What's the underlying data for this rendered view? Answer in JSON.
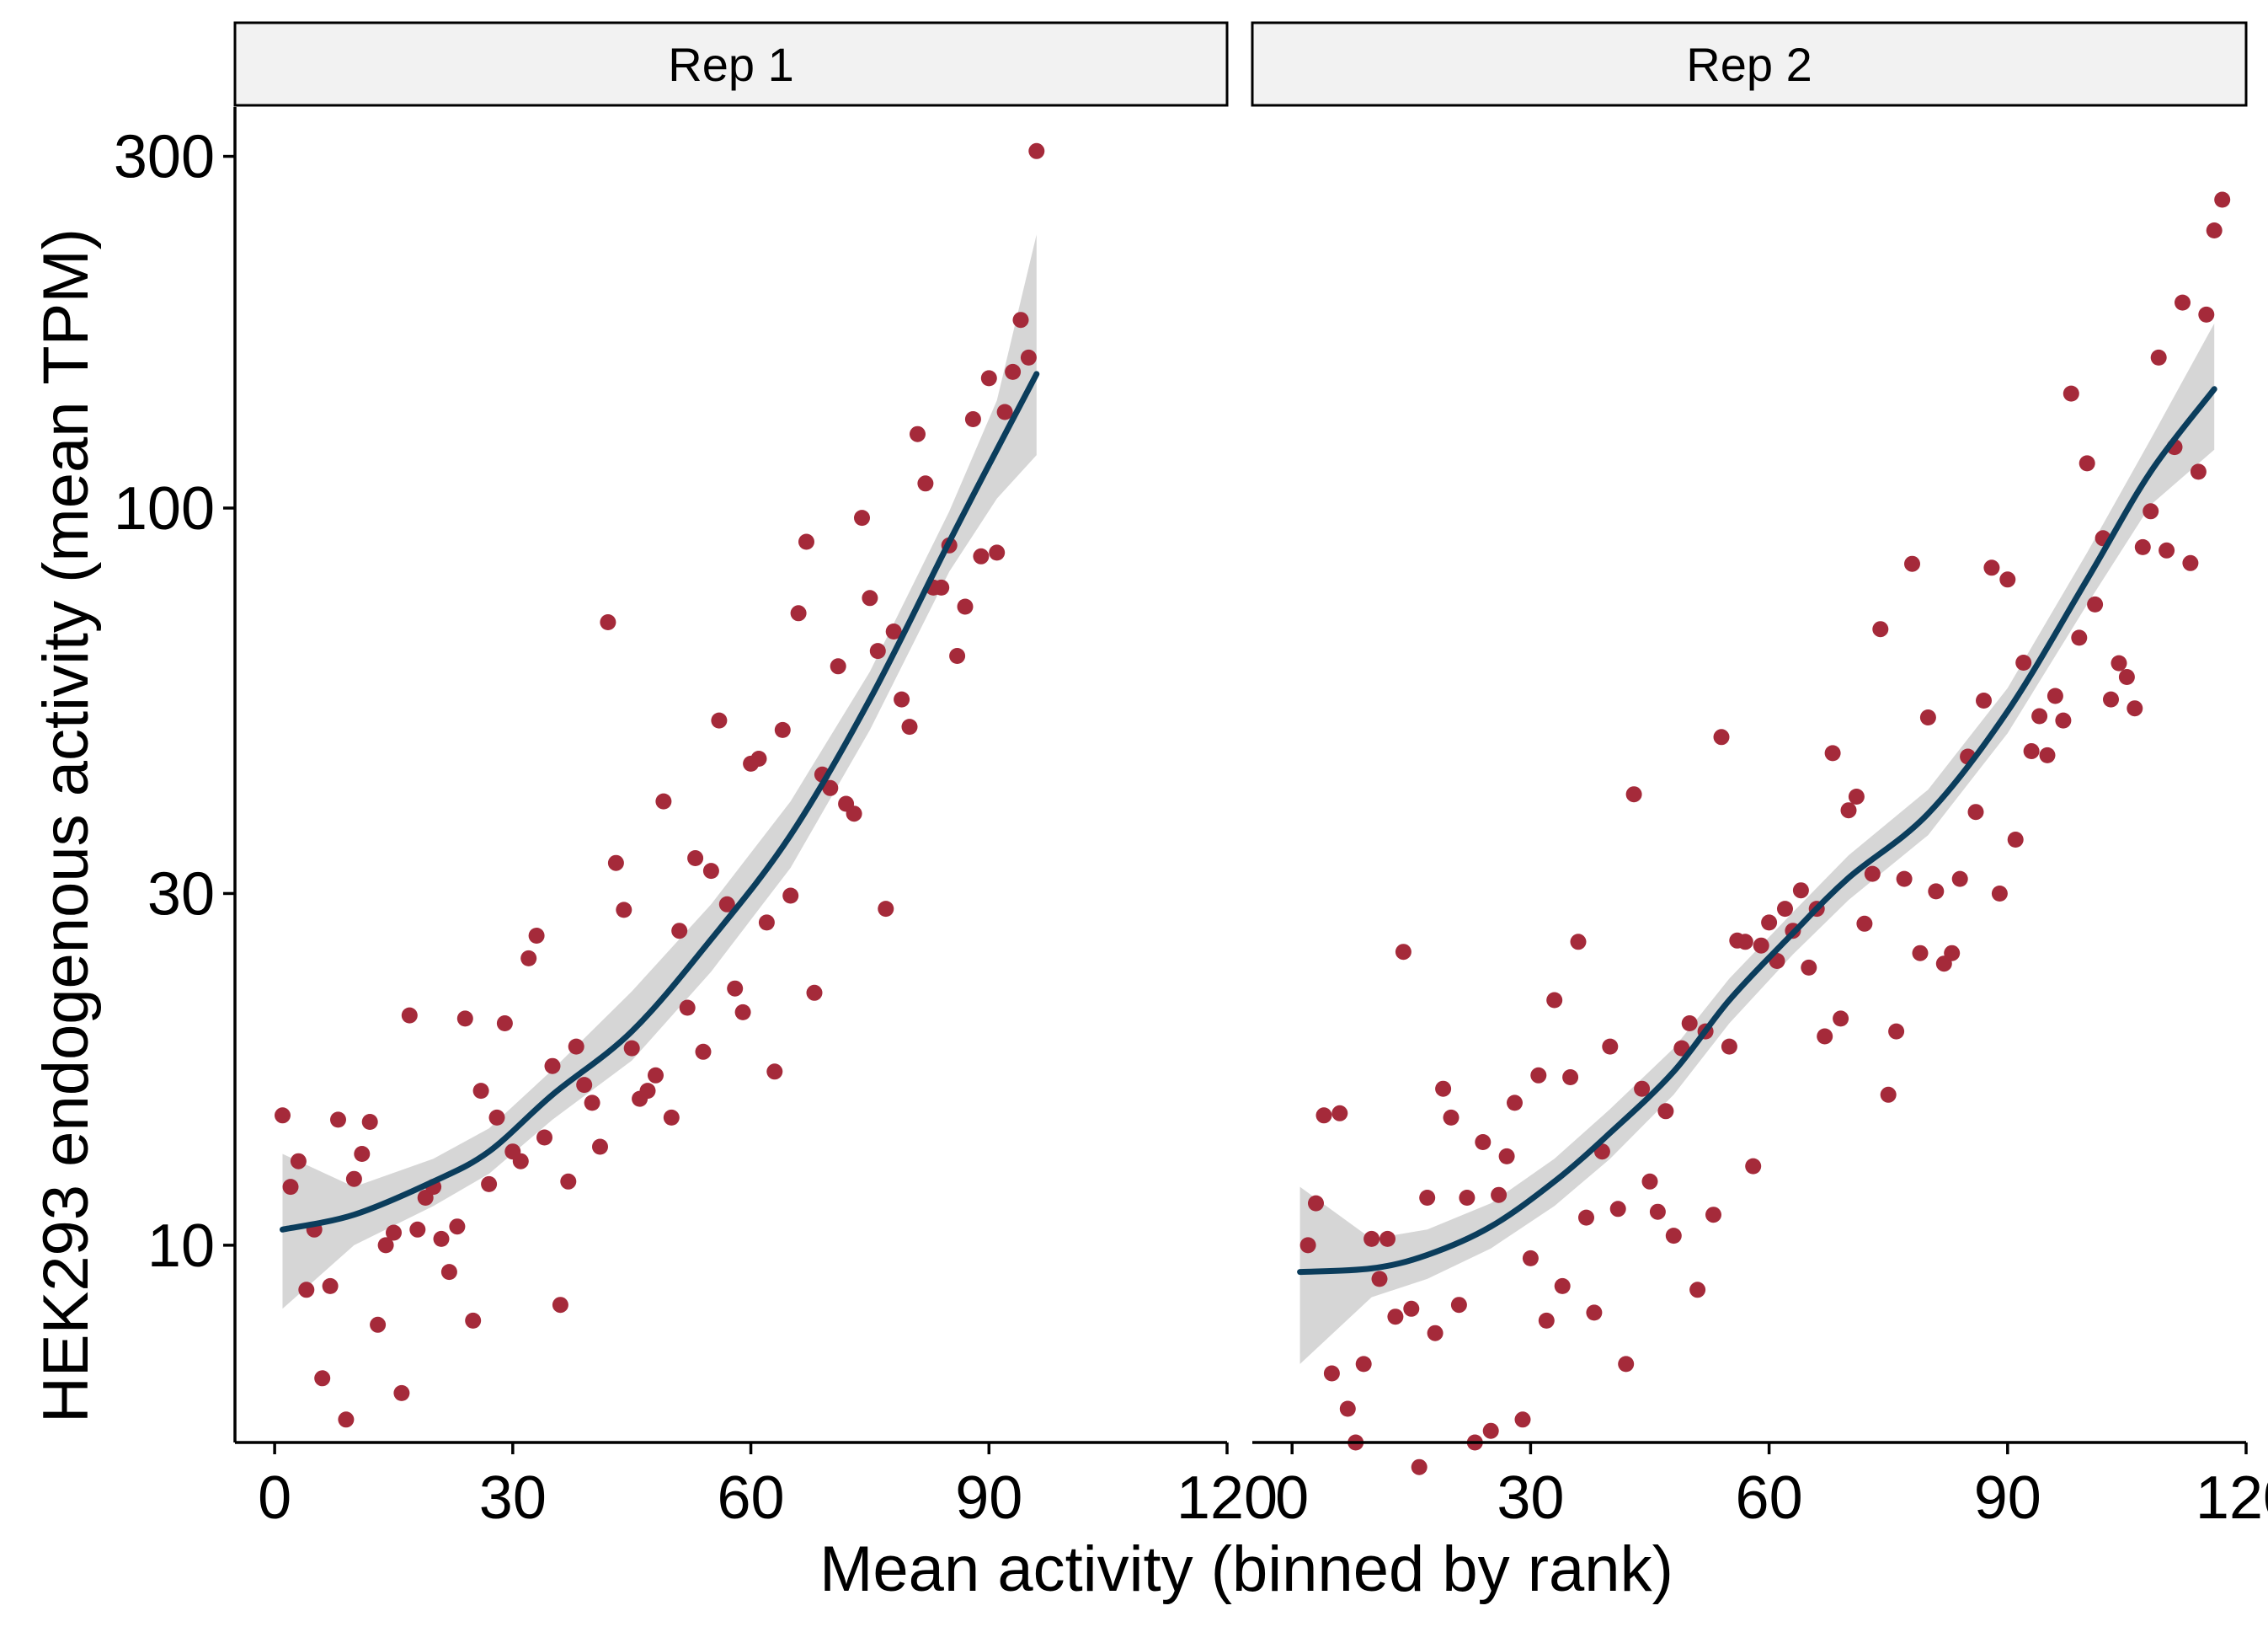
{
  "chart_data": {
    "type": "scatter",
    "xlabel": "Mean activity (binned by rank)",
    "ylabel": "HEK293 endogenous activity (mean TPM)",
    "yscale": "log10",
    "xlim": [
      -5,
      120
    ],
    "ylim": [
      5.4,
      350
    ],
    "x_ticks": [
      0,
      30,
      60,
      90,
      120
    ],
    "x_tick_labels": [
      "0",
      "30",
      "60",
      "90",
      "120"
    ],
    "y_ticks": [
      10,
      30,
      100,
      300
    ],
    "y_tick_labels": [
      "10",
      "30",
      "100",
      "300"
    ],
    "grid": false,
    "legend": "none",
    "colors": {
      "points": "#a52a3a",
      "trend": "#0b3d5c",
      "band": "#bdbdbd",
      "strip": "#f2f2f2"
    },
    "panels": [
      {
        "label": "Rep 1",
        "points": [
          [
            1,
            15
          ],
          [
            2,
            12
          ],
          [
            3,
            13
          ],
          [
            4,
            8.7
          ],
          [
            5,
            10.5
          ],
          [
            6,
            6.6
          ],
          [
            7,
            8.8
          ],
          [
            8,
            14.8
          ],
          [
            9,
            5.8
          ],
          [
            10,
            12.3
          ],
          [
            11,
            13.3
          ],
          [
            12,
            14.7
          ],
          [
            13,
            7.8
          ],
          [
            14,
            10
          ],
          [
            15,
            10.4
          ],
          [
            16,
            6.3
          ],
          [
            17,
            20.5
          ],
          [
            18,
            10.5
          ],
          [
            19,
            11.6
          ],
          [
            20,
            12
          ],
          [
            21,
            10.2
          ],
          [
            22,
            9.2
          ],
          [
            23,
            10.6
          ],
          [
            24,
            20.3
          ],
          [
            25,
            7.9
          ],
          [
            26,
            16.2
          ],
          [
            27,
            12.1
          ],
          [
            28,
            14.9
          ],
          [
            29,
            20
          ],
          [
            30,
            13.4
          ],
          [
            31,
            13
          ],
          [
            32,
            24.5
          ],
          [
            33,
            26.3
          ],
          [
            34,
            14
          ],
          [
            35,
            17.5
          ],
          [
            36,
            8.3
          ],
          [
            37,
            12.2
          ],
          [
            38,
            18.6
          ],
          [
            39,
            16.5
          ],
          [
            40,
            15.6
          ],
          [
            41,
            13.6
          ],
          [
            42,
            70
          ],
          [
            43,
            33
          ],
          [
            44,
            28.5
          ],
          [
            45,
            18.5
          ],
          [
            46,
            15.8
          ],
          [
            47,
            16.2
          ],
          [
            48,
            17
          ],
          [
            49,
            40
          ],
          [
            50,
            14.9
          ],
          [
            51,
            26.7
          ],
          [
            52,
            21
          ],
          [
            53,
            33.5
          ],
          [
            54,
            18.3
          ],
          [
            55,
            32.2
          ],
          [
            56,
            51.5
          ],
          [
            57,
            29
          ],
          [
            58,
            22.3
          ],
          [
            59,
            20.7
          ],
          [
            60,
            45
          ],
          [
            61,
            45.7
          ],
          [
            62,
            27.4
          ],
          [
            63,
            17.2
          ],
          [
            64,
            50
          ],
          [
            65,
            29.8
          ],
          [
            66,
            72
          ],
          [
            67,
            90
          ],
          [
            68,
            22
          ],
          [
            69,
            43.5
          ],
          [
            70,
            41.7
          ],
          [
            71,
            61
          ],
          [
            72,
            39.7
          ],
          [
            73,
            38.5
          ],
          [
            74,
            97
          ],
          [
            75,
            75.5
          ],
          [
            76,
            64
          ],
          [
            77,
            28.6
          ],
          [
            78,
            68
          ],
          [
            79,
            55
          ],
          [
            80,
            50.5
          ],
          [
            81,
            126
          ],
          [
            82,
            108
          ],
          [
            83,
            78
          ],
          [
            84,
            78
          ],
          [
            85,
            89
          ],
          [
            86,
            63
          ],
          [
            87,
            73.5
          ],
          [
            88,
            132
          ],
          [
            89,
            86
          ],
          [
            90,
            150
          ],
          [
            91,
            87
          ],
          [
            92,
            135
          ],
          [
            93,
            153
          ],
          [
            94,
            180
          ],
          [
            95,
            160
          ],
          [
            96,
            305
          ]
        ],
        "trend": [
          [
            1,
            10.5
          ],
          [
            10,
            11
          ],
          [
            20,
            12.2
          ],
          [
            27,
            13.4
          ],
          [
            35,
            16
          ],
          [
            45,
            19.5
          ],
          [
            55,
            26
          ],
          [
            65,
            36
          ],
          [
            75,
            55
          ],
          [
            85,
            90
          ],
          [
            91,
            120
          ],
          [
            96,
            152
          ]
        ],
        "band_upper": [
          [
            1,
            13.3
          ],
          [
            10,
            12
          ],
          [
            20,
            13.1
          ],
          [
            27,
            14.4
          ],
          [
            35,
            17.3
          ],
          [
            45,
            22.1
          ],
          [
            55,
            29
          ],
          [
            65,
            40
          ],
          [
            75,
            60
          ],
          [
            85,
            99
          ],
          [
            91,
            140
          ],
          [
            96,
            235
          ]
        ],
        "band_lower": [
          [
            1,
            8.2
          ],
          [
            10,
            10
          ],
          [
            20,
            11.3
          ],
          [
            27,
            12.5
          ],
          [
            35,
            14.8
          ],
          [
            45,
            17.8
          ],
          [
            55,
            23.5
          ],
          [
            65,
            32.5
          ],
          [
            75,
            50
          ],
          [
            85,
            82
          ],
          [
            91,
            103
          ],
          [
            96,
            118
          ]
        ]
      },
      {
        "label": "Rep 2",
        "points": [
          [
            2,
            10
          ],
          [
            3,
            11.4
          ],
          [
            4,
            15
          ],
          [
            5,
            6.7
          ],
          [
            6,
            15.1
          ],
          [
            7,
            6
          ],
          [
            8,
            5.4
          ],
          [
            9,
            6.9
          ],
          [
            10,
            10.2
          ],
          [
            11,
            9
          ],
          [
            12,
            10.2
          ],
          [
            13,
            8
          ],
          [
            14,
            25
          ],
          [
            15,
            8.2
          ],
          [
            16,
            5
          ],
          [
            17,
            11.6
          ],
          [
            18,
            7.6
          ],
          [
            19,
            16.3
          ],
          [
            20,
            14.9
          ],
          [
            21,
            8.3
          ],
          [
            22,
            11.6
          ],
          [
            23,
            5.4
          ],
          [
            24,
            13.8
          ],
          [
            25,
            5.6
          ],
          [
            26,
            11.7
          ],
          [
            27,
            13.2
          ],
          [
            28,
            15.6
          ],
          [
            29,
            5.8
          ],
          [
            30,
            9.6
          ],
          [
            31,
            17
          ],
          [
            32,
            7.9
          ],
          [
            33,
            21.5
          ],
          [
            34,
            8.8
          ],
          [
            35,
            16.9
          ],
          [
            36,
            25.8
          ],
          [
            37,
            10.9
          ],
          [
            38,
            8.1
          ],
          [
            39,
            13.4
          ],
          [
            40,
            18.6
          ],
          [
            41,
            11.2
          ],
          [
            42,
            6.9
          ],
          [
            43,
            40.9
          ],
          [
            44,
            16.3
          ],
          [
            45,
            12.2
          ],
          [
            46,
            11.1
          ],
          [
            47,
            15.2
          ],
          [
            48,
            10.3
          ],
          [
            49,
            18.5
          ],
          [
            50,
            20
          ],
          [
            51,
            8.7
          ],
          [
            52,
            19.5
          ],
          [
            53,
            11
          ],
          [
            54,
            48.9
          ],
          [
            55,
            18.6
          ],
          [
            56,
            25.9
          ],
          [
            57,
            25.8
          ],
          [
            58,
            12.8
          ],
          [
            59,
            25.5
          ],
          [
            60,
            27.4
          ],
          [
            61,
            24.3
          ],
          [
            62,
            28.6
          ],
          [
            63,
            26.7
          ],
          [
            64,
            30.3
          ],
          [
            65,
            23.8
          ],
          [
            66,
            28.6
          ],
          [
            67,
            19.2
          ],
          [
            68,
            46.5
          ],
          [
            69,
            20.3
          ],
          [
            70,
            38.9
          ],
          [
            71,
            40.6
          ],
          [
            72,
            27.3
          ],
          [
            73,
            31.9
          ],
          [
            74,
            68.5
          ],
          [
            75,
            16
          ],
          [
            76,
            19.5
          ],
          [
            77,
            31.4
          ],
          [
            78,
            84
          ],
          [
            79,
            24.9
          ],
          [
            80,
            52
          ],
          [
            81,
            30.2
          ],
          [
            82,
            24.1
          ],
          [
            83,
            24.9
          ],
          [
            84,
            31.4
          ],
          [
            85,
            46
          ],
          [
            86,
            38.7
          ],
          [
            87,
            54.8
          ],
          [
            88,
            83
          ],
          [
            89,
            30
          ],
          [
            90,
            80
          ],
          [
            91,
            35.5
          ],
          [
            92,
            61.7
          ],
          [
            93,
            46.8
          ],
          [
            94,
            52.2
          ],
          [
            95,
            46.2
          ],
          [
            96,
            55.6
          ],
          [
            97,
            51.5
          ],
          [
            98,
            143
          ],
          [
            99,
            66.7
          ],
          [
            100,
            115
          ],
          [
            101,
            74
          ],
          [
            102,
            91
          ],
          [
            103,
            55
          ],
          [
            104,
            61.6
          ],
          [
            105,
            59
          ],
          [
            106,
            53.5
          ],
          [
            107,
            88.5
          ],
          [
            108,
            99
          ],
          [
            109,
            160
          ],
          [
            110,
            87.6
          ],
          [
            111,
            121
          ],
          [
            112,
            190
          ],
          [
            113,
            84.2
          ],
          [
            114,
            112
          ],
          [
            115,
            183
          ],
          [
            116,
            238
          ],
          [
            117,
            262
          ]
        ],
        "trend": [
          [
            1,
            9.2
          ],
          [
            10,
            9.3
          ],
          [
            17,
            9.7
          ],
          [
            25,
            10.6
          ],
          [
            33,
            12.2
          ],
          [
            40,
            14.2
          ],
          [
            48,
            17.2
          ],
          [
            55,
            21.5
          ],
          [
            63,
            26.5
          ],
          [
            70,
            31.5
          ],
          [
            80,
            38.5
          ],
          [
            90,
            53
          ],
          [
            100,
            80
          ],
          [
            108,
            112
          ],
          [
            116,
            145
          ]
        ],
        "band_upper": [
          [
            1,
            12
          ],
          [
            10,
            10.2
          ],
          [
            17,
            10.5
          ],
          [
            25,
            11.4
          ],
          [
            33,
            13.1
          ],
          [
            40,
            15.3
          ],
          [
            48,
            18.5
          ],
          [
            55,
            23
          ],
          [
            63,
            28.3
          ],
          [
            70,
            33.8
          ],
          [
            80,
            41.5
          ],
          [
            90,
            57
          ],
          [
            100,
            87
          ],
          [
            108,
            124
          ],
          [
            116,
            178
          ]
        ],
        "band_lower": [
          [
            1,
            6.9
          ],
          [
            10,
            8.5
          ],
          [
            17,
            9
          ],
          [
            25,
            9.9
          ],
          [
            33,
            11.3
          ],
          [
            40,
            13.1
          ],
          [
            48,
            16
          ],
          [
            55,
            20
          ],
          [
            63,
            24.8
          ],
          [
            70,
            29.4
          ],
          [
            80,
            36
          ],
          [
            90,
            49.5
          ],
          [
            100,
            74
          ],
          [
            108,
            101
          ],
          [
            116,
            120
          ]
        ]
      }
    ]
  }
}
